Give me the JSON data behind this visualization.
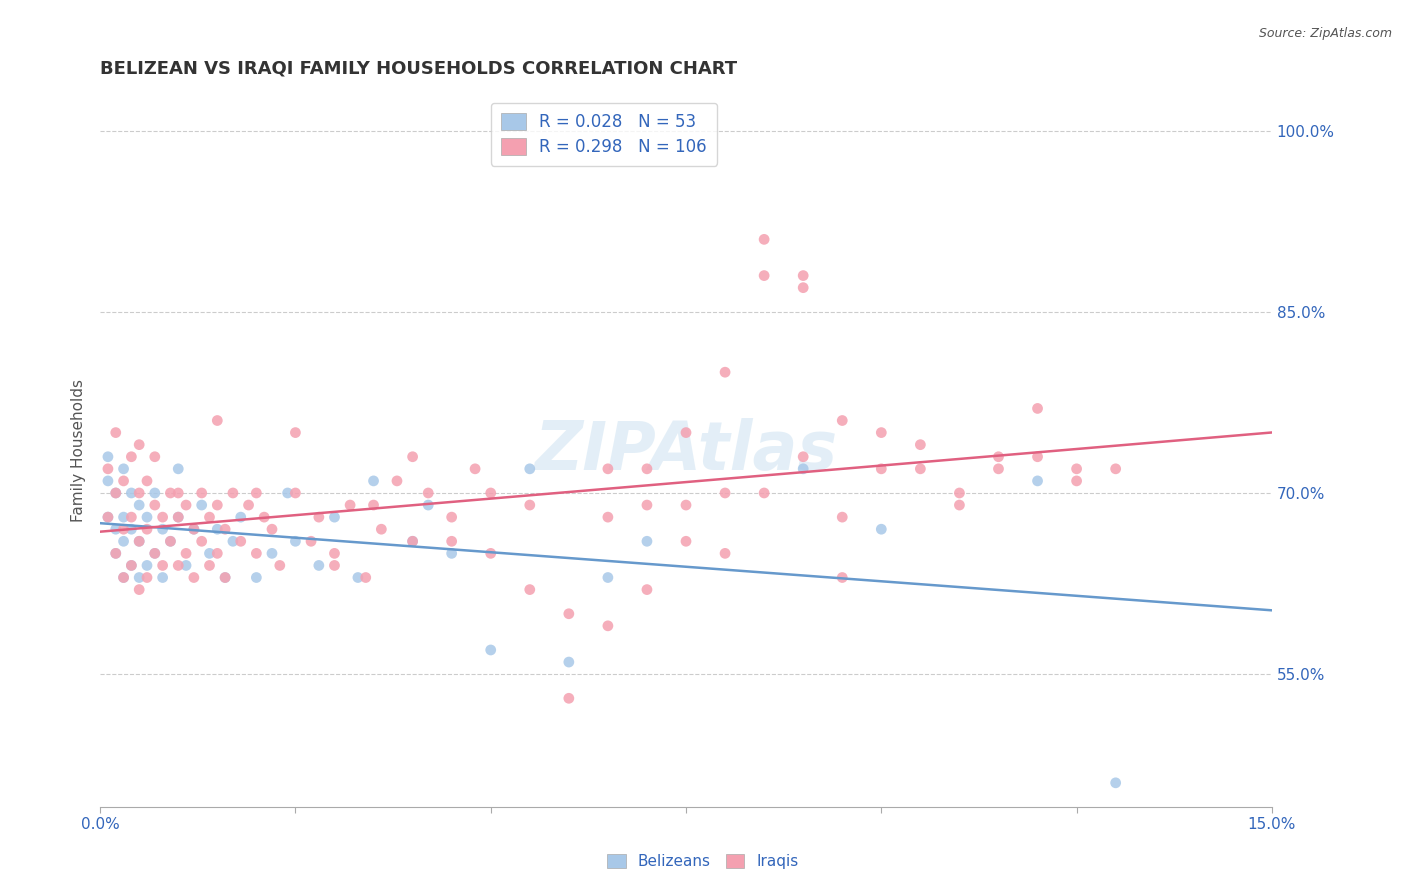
{
  "title": "BELIZEAN VS IRAQI FAMILY HOUSEHOLDS CORRELATION CHART",
  "source": "Source: ZipAtlas.com",
  "ylabel": "Family Households",
  "xlabel": "",
  "xlim": [
    0.0,
    0.15
  ],
  "ylim": [
    0.44,
    1.03
  ],
  "xticks": [
    0.0,
    0.025,
    0.05,
    0.075,
    0.1,
    0.125,
    0.15
  ],
  "xticklabels": [
    "0.0%",
    "",
    "",
    "",
    "",
    "",
    "15.0%"
  ],
  "yticks_right": [
    0.55,
    0.7,
    0.85,
    1.0
  ],
  "ytick_right_labels": [
    "55.0%",
    "70.0%",
    "85.0%",
    "100.0%"
  ],
  "belizean_color": "#a8c8e8",
  "iraqi_color": "#f4a0b0",
  "belizean_line_color": "#6699cc",
  "iraqi_line_color": "#e06080",
  "R_belizean": 0.028,
  "N_belizean": 53,
  "R_iraqi": 0.298,
  "N_iraqi": 106,
  "legend_color": "#3366bb",
  "title_color": "#333333",
  "watermark": "ZIPAtlas",
  "background_color": "#ffffff",
  "grid_color": "#cccccc",
  "belizean_x": [
    0.001,
    0.001,
    0.001,
    0.002,
    0.002,
    0.002,
    0.003,
    0.003,
    0.003,
    0.003,
    0.004,
    0.004,
    0.004,
    0.005,
    0.005,
    0.005,
    0.006,
    0.006,
    0.007,
    0.007,
    0.008,
    0.008,
    0.009,
    0.01,
    0.01,
    0.011,
    0.012,
    0.013,
    0.014,
    0.015,
    0.016,
    0.017,
    0.018,
    0.02,
    0.022,
    0.024,
    0.025,
    0.028,
    0.03,
    0.033,
    0.035,
    0.04,
    0.042,
    0.045,
    0.05,
    0.055,
    0.06,
    0.065,
    0.07,
    0.09,
    0.1,
    0.12,
    0.13
  ],
  "belizean_y": [
    0.68,
    0.71,
    0.73,
    0.65,
    0.67,
    0.7,
    0.63,
    0.66,
    0.68,
    0.72,
    0.64,
    0.67,
    0.7,
    0.63,
    0.66,
    0.69,
    0.64,
    0.68,
    0.65,
    0.7,
    0.63,
    0.67,
    0.66,
    0.68,
    0.72,
    0.64,
    0.67,
    0.69,
    0.65,
    0.67,
    0.63,
    0.66,
    0.68,
    0.63,
    0.65,
    0.7,
    0.66,
    0.64,
    0.68,
    0.63,
    0.71,
    0.66,
    0.69,
    0.65,
    0.57,
    0.72,
    0.56,
    0.63,
    0.66,
    0.72,
    0.67,
    0.71,
    0.46
  ],
  "iraqi_x": [
    0.001,
    0.001,
    0.002,
    0.002,
    0.002,
    0.003,
    0.003,
    0.003,
    0.004,
    0.004,
    0.004,
    0.005,
    0.005,
    0.005,
    0.005,
    0.006,
    0.006,
    0.006,
    0.007,
    0.007,
    0.007,
    0.008,
    0.008,
    0.009,
    0.009,
    0.01,
    0.01,
    0.011,
    0.011,
    0.012,
    0.012,
    0.013,
    0.013,
    0.014,
    0.014,
    0.015,
    0.015,
    0.016,
    0.016,
    0.017,
    0.018,
    0.019,
    0.02,
    0.021,
    0.022,
    0.023,
    0.025,
    0.027,
    0.028,
    0.03,
    0.032,
    0.034,
    0.036,
    0.038,
    0.04,
    0.042,
    0.045,
    0.048,
    0.05,
    0.055,
    0.06,
    0.065,
    0.07,
    0.075,
    0.08,
    0.085,
    0.09,
    0.095,
    0.1,
    0.105,
    0.11,
    0.115,
    0.12,
    0.125,
    0.065,
    0.07,
    0.075,
    0.08,
    0.085,
    0.09,
    0.095,
    0.01,
    0.015,
    0.02,
    0.025,
    0.03,
    0.035,
    0.04,
    0.045,
    0.05,
    0.055,
    0.06,
    0.065,
    0.07,
    0.075,
    0.08,
    0.085,
    0.09,
    0.095,
    0.1,
    0.105,
    0.11,
    0.115,
    0.12,
    0.125,
    0.13
  ],
  "iraqi_y": [
    0.68,
    0.72,
    0.65,
    0.7,
    0.75,
    0.63,
    0.67,
    0.71,
    0.64,
    0.68,
    0.73,
    0.62,
    0.66,
    0.7,
    0.74,
    0.63,
    0.67,
    0.71,
    0.65,
    0.69,
    0.73,
    0.64,
    0.68,
    0.66,
    0.7,
    0.64,
    0.68,
    0.65,
    0.69,
    0.63,
    0.67,
    0.66,
    0.7,
    0.64,
    0.68,
    0.65,
    0.69,
    0.63,
    0.67,
    0.7,
    0.66,
    0.69,
    0.65,
    0.68,
    0.67,
    0.64,
    0.7,
    0.66,
    0.68,
    0.65,
    0.69,
    0.63,
    0.67,
    0.71,
    0.66,
    0.7,
    0.68,
    0.72,
    0.65,
    0.69,
    0.53,
    0.68,
    0.72,
    0.69,
    0.65,
    0.7,
    0.73,
    0.68,
    0.72,
    0.74,
    0.69,
    0.73,
    0.77,
    0.72,
    0.72,
    0.69,
    0.75,
    0.8,
    0.91,
    0.88,
    0.63,
    0.7,
    0.76,
    0.7,
    0.75,
    0.64,
    0.69,
    0.73,
    0.66,
    0.7,
    0.62,
    0.6,
    0.59,
    0.62,
    0.66,
    0.7,
    0.88,
    0.87,
    0.76,
    0.75,
    0.72,
    0.7,
    0.72,
    0.73,
    0.71,
    0.72
  ]
}
